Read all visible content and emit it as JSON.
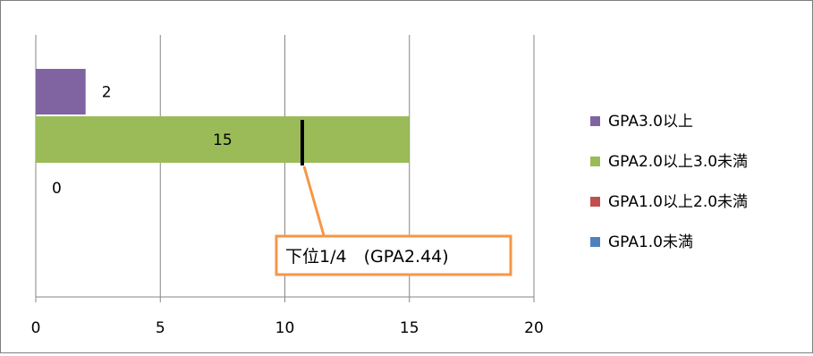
{
  "chart_data": {
    "type": "bar",
    "orientation": "horizontal",
    "stacked": true,
    "xlim": [
      0,
      20
    ],
    "x_ticks": [
      "0",
      "5",
      "10",
      "15",
      "20"
    ],
    "grid": true,
    "legend_placement": "right",
    "series": [
      {
        "name": "GPA3.0以上",
        "value": 2,
        "label": "2",
        "color": "#8064a2"
      },
      {
        "name": "GPA2.0以上3.0未満",
        "value": 15,
        "label": "15",
        "color": "#9bbb59"
      },
      {
        "name": "GPA1.0以上2.0未満",
        "value": 0,
        "label": "0",
        "color": "#c0504d"
      },
      {
        "name": "GPA1.0未満",
        "value": 0,
        "label": "",
        "color": "#4f81bd"
      }
    ],
    "marker": {
      "value": 10.7,
      "label": "下位1/4　(GPA2.44)"
    },
    "callout_color": "#f79646"
  }
}
